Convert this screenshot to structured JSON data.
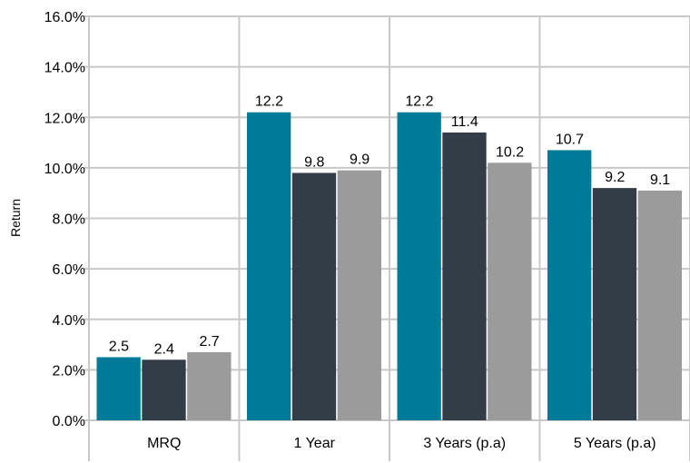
{
  "chart_data": {
    "type": "bar",
    "categories": [
      "MRQ",
      "1 Year",
      "3 Years (p.a)",
      "5 Years (p.a)"
    ],
    "series": [
      {
        "values": [
          2.5,
          12.2,
          12.2,
          10.7
        ],
        "color": "#007a99"
      },
      {
        "values": [
          2.4,
          9.8,
          11.4,
          9.2
        ],
        "color": "#333d47"
      },
      {
        "values": [
          2.7,
          9.9,
          10.2,
          9.1
        ],
        "color": "#9b9b9b"
      }
    ],
    "ylabel": "Return",
    "ylim": [
      0,
      16
    ],
    "yticks": [
      "0.0%",
      "2.0%",
      "4.0%",
      "6.0%",
      "8.0%",
      "10.0%",
      "12.0%",
      "14.0%",
      "16.0%"
    ],
    "data_labels": [
      [
        "2.5",
        "12.2",
        "12.2",
        "10.7"
      ],
      [
        "2.4",
        "9.8",
        "11.4",
        "9.2"
      ],
      [
        "2.7",
        "9.9",
        "10.2",
        "9.1"
      ]
    ],
    "grid": true,
    "legend": "none"
  }
}
